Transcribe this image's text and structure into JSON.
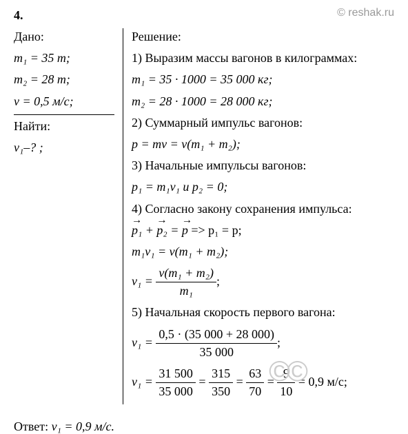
{
  "colors": {
    "text": "#000000",
    "watermark": "#999999",
    "copyright": "#cccccc",
    "background": "#ffffff",
    "border": "#000000"
  },
  "typography": {
    "body_fontsize": 18,
    "sub_fontsize_em": 0.7,
    "font_family": "Times New Roman, serif"
  },
  "problem_number": "4.",
  "watermark": "© reshak.ru",
  "copyright": "©©",
  "given": {
    "header": "Дано:",
    "m1": "m₁ = 35 т;",
    "m2": "m₂ = 28 т;",
    "v": "v = 0,5 м/с;"
  },
  "find": {
    "header": "Найти:",
    "v1": "v₁–? ;"
  },
  "solution": {
    "header": "Решение:",
    "step1_text": "1) Выразим массы вагонов в килограммах:",
    "step1_m1": "m₁ = 35 · 1000 = 35 000 кг;",
    "step1_m2": "m₂ = 28 · 1000 = 28 000 кг;",
    "step2_text": "2) Суммарный импульс вагонов:",
    "step2_eq": "p = mv = v(m₁ + m₂);",
    "step3_text": "3) Начальные импульсы вагонов:",
    "step3_eq": "p₁ = m₁v₁  и  p₂ = 0;",
    "step4_text": "4) Согласно закону сохранения импульса:",
    "step4_vec_p1": "p₁",
    "step4_plus": " + ",
    "step4_vec_p2": "p₂",
    "step4_eq": " = ",
    "step4_vec_p": "p ",
    "step4_arrow": "   =>   p₁ = p;",
    "step4_eq2": "m₁v₁ = v(m₁ + m₂);",
    "step4_v1_lhs": "v₁ = ",
    "step4_v1_num": "v(m₁ + m₂)",
    "step4_v1_den": "m₁",
    "step4_v1_end": ";",
    "step5_text": "5) Начальная скорость первого вагона:",
    "step5_v1_lhs": "v₁ = ",
    "step5_v1_num": "0,5 · (35 000 + 28 000)",
    "step5_v1_den": "35 000",
    "step5_v1_end": ";",
    "step5_chain_lhs": "v₁ = ",
    "step5_f1_num": "31 500",
    "step5_f1_den": "35 000",
    "step5_eq1": " = ",
    "step5_f2_num": "315",
    "step5_f2_den": "350",
    "step5_eq2": " = ",
    "step5_f3_num": "63",
    "step5_f3_den": "70",
    "step5_eq3": " = ",
    "step5_f4_num": "9",
    "step5_f4_den": "10",
    "step5_result": " = 0,9 м/с;"
  },
  "answer": {
    "label": "Ответ:  ",
    "value": "v₁ = 0,9 м/с."
  }
}
